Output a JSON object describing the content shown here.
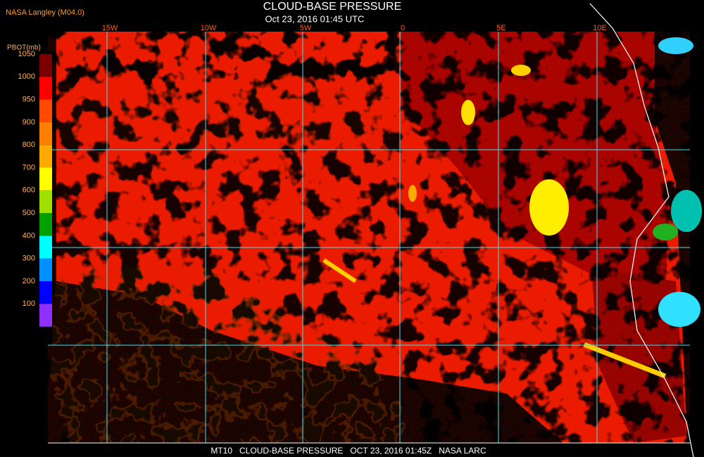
{
  "header": {
    "credit": "NASA Langley (M04.0)",
    "title": "CLOUD-BASE PRESSURE",
    "subtitle": "Oct 23, 2016 01:45 UTC"
  },
  "colorbar": {
    "label": "PBOT(mb)",
    "ticks": [
      "1050",
      "1000",
      "950",
      "900",
      "800",
      "700",
      "600",
      "500",
      "400",
      "300",
      "200",
      "100"
    ],
    "colors": [
      "#7a0000",
      "#ff0000",
      "#ff4a00",
      "#ff7f00",
      "#ffaa00",
      "#ffff00",
      "#a0e000",
      "#00a000",
      "#00ffff",
      "#0090ff",
      "#0000ff",
      "#9030ff"
    ]
  },
  "map": {
    "lon_labels": [
      "15W",
      "10W",
      "5W",
      "0",
      "5E",
      "10E"
    ]
  },
  "footer": "MT10   CLOUD-BASE PRESSURE   OCT 23, 2016 01:45Z   NASA LARC"
}
